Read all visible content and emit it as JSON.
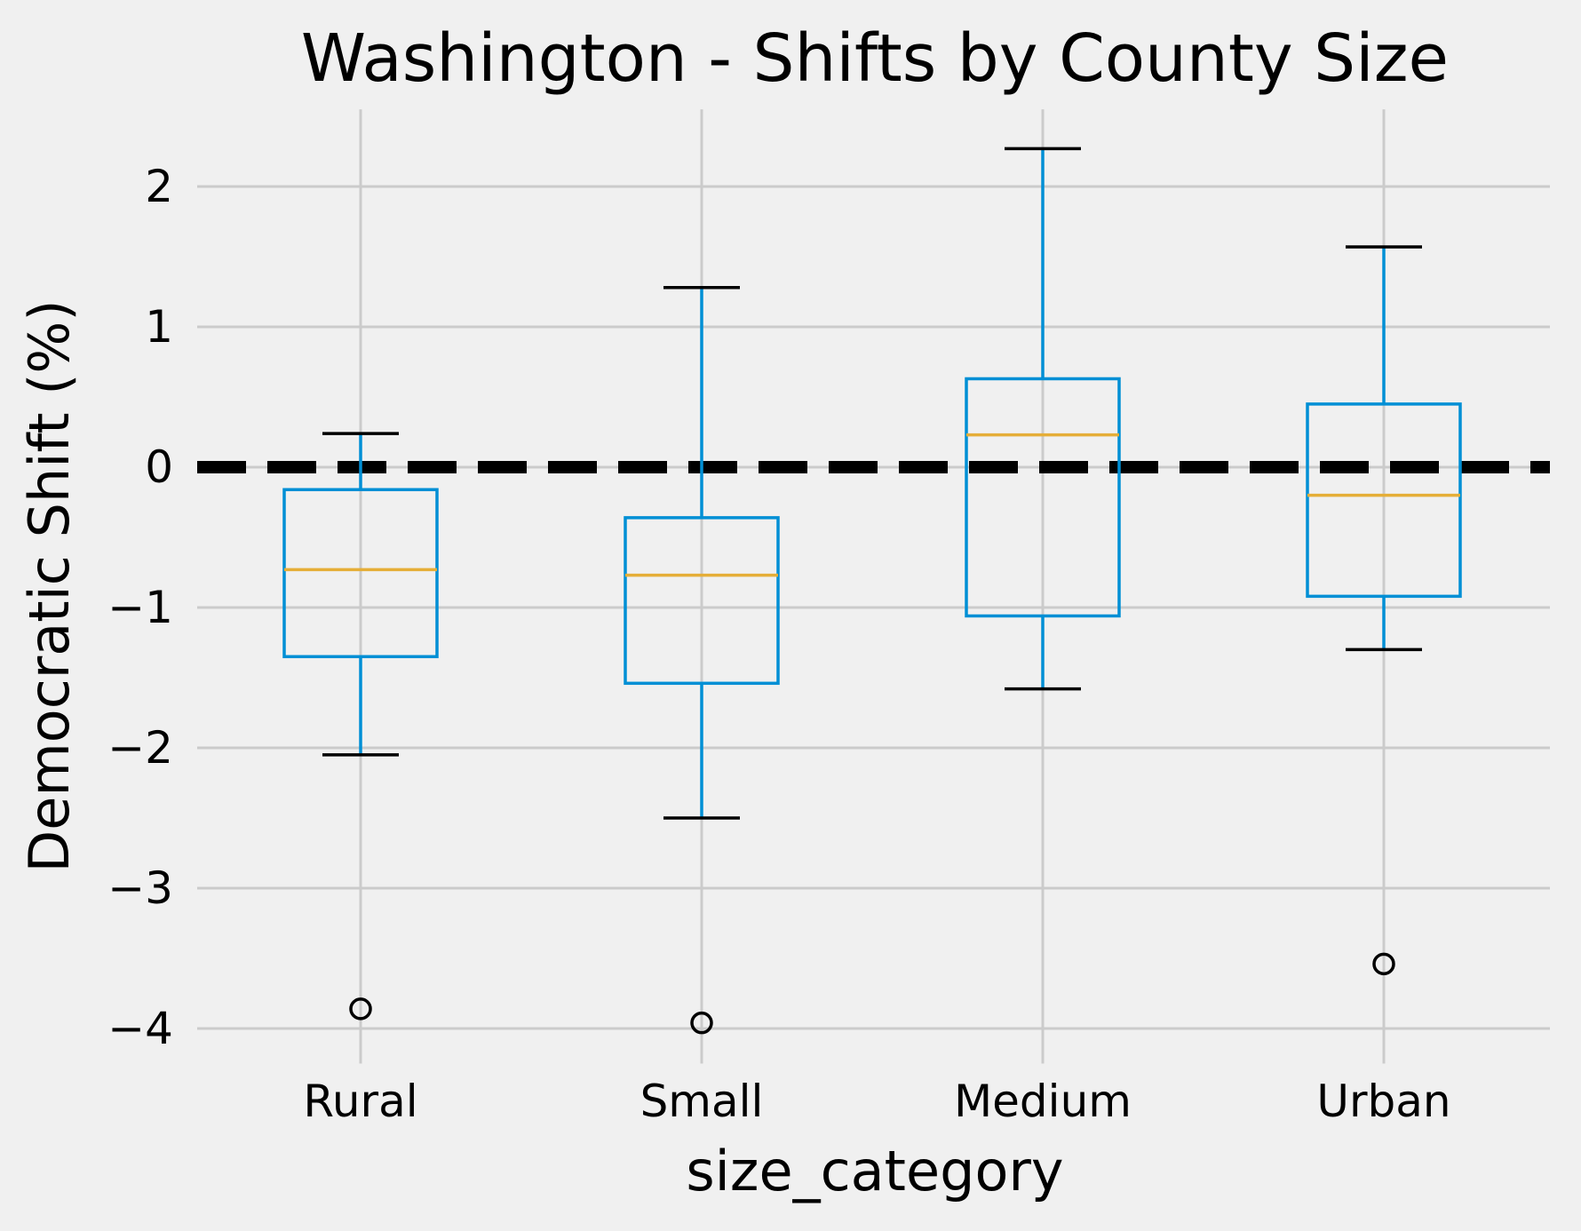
{
  "chart_data": {
    "type": "box",
    "title": "Washington - Shifts by County Size",
    "xlabel": "size_category",
    "ylabel": "Democratic Shift (%)",
    "ylim": [
      -4.25,
      2.55
    ],
    "yticks": [
      2,
      1,
      0,
      -1,
      -2,
      -3,
      -4
    ],
    "ytick_labels": [
      "2",
      "1",
      "0",
      "−1",
      "−2",
      "−3",
      "−4"
    ],
    "categories": [
      "Rural",
      "Small",
      "Medium",
      "Urban"
    ],
    "boxes": [
      {
        "category": "Rural",
        "whisker_low": -2.05,
        "q1": -1.35,
        "median": -0.73,
        "q3": -0.16,
        "whisker_high": 0.24,
        "outliers": [
          -3.86
        ]
      },
      {
        "category": "Small",
        "whisker_low": -2.5,
        "q1": -1.54,
        "median": -0.77,
        "q3": -0.36,
        "whisker_high": 1.28,
        "outliers": [
          -3.96
        ]
      },
      {
        "category": "Medium",
        "whisker_low": -1.58,
        "q1": -1.06,
        "median": 0.23,
        "q3": 0.63,
        "whisker_high": 2.27,
        "outliers": []
      },
      {
        "category": "Urban",
        "whisker_low": -1.3,
        "q1": -0.92,
        "median": -0.2,
        "q3": 0.45,
        "whisker_high": 1.57,
        "outliers": [
          -3.54
        ]
      }
    ],
    "reference_line": {
      "y": 0,
      "style": "dashed",
      "color": "#000000"
    },
    "grid": true,
    "colors": {
      "background": "#f0f0f0",
      "grid": "#cbcbcb",
      "box": "#008fd5",
      "median": "#e5ae38",
      "caps": "#000000",
      "outlier": "#000000"
    }
  }
}
